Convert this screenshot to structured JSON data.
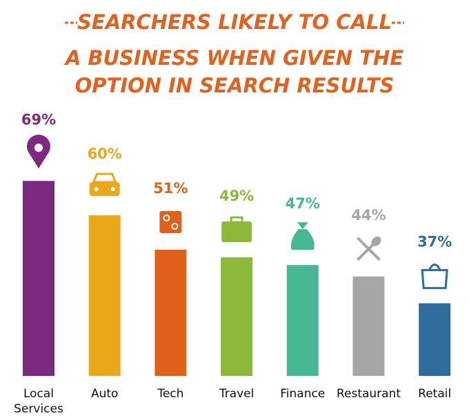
{
  "chart_data": {
    "type": "bar",
    "title": "SEARCHERS LIKELY TO CALL",
    "subtitle": "A BUSINESS WHEN GIVEN THE OPTION IN SEARCH RESULTS",
    "categories": [
      "Local Services",
      "Auto",
      "Tech",
      "Travel",
      "Finance",
      "Restaurant",
      "Retail"
    ],
    "values": [
      69,
      60,
      51,
      49,
      47,
      44,
      37
    ],
    "value_labels": [
      "69%",
      "60%",
      "51%",
      "49%",
      "47%",
      "44%",
      "37%"
    ],
    "colors": [
      "#7b2a80",
      "#eaa719",
      "#e0611c",
      "#8cb93a",
      "#45b795",
      "#a6a6a6",
      "#2e6c9e"
    ],
    "ylim": [
      18,
      75
    ]
  }
}
